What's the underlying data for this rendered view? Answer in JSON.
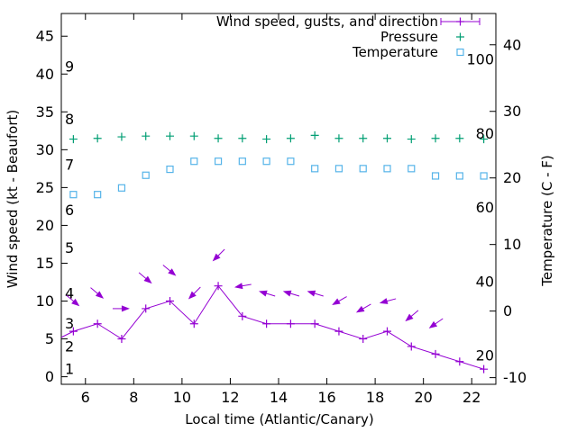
{
  "axes": {
    "left": {
      "label": "Wind speed (kt - Beaufort)",
      "ticks": [
        0,
        5,
        10,
        15,
        20,
        25,
        30,
        35,
        40,
        45
      ],
      "inner_scale": {
        "name": "Beaufort",
        "labels": [
          {
            "b": "1",
            "kt": 1
          },
          {
            "b": "2",
            "kt": 4
          },
          {
            "b": "3",
            "kt": 7
          },
          {
            "b": "4",
            "kt": 11
          },
          {
            "b": "5",
            "kt": 17
          },
          {
            "b": "6",
            "kt": 22
          },
          {
            "b": "7",
            "kt": 28
          },
          {
            "b": "8",
            "kt": 34
          },
          {
            "b": "9",
            "kt": 41
          }
        ]
      }
    },
    "right": {
      "label": "Temperature (C - F)",
      "ticks": [
        -10,
        0,
        10,
        20,
        30,
        40
      ],
      "inner_scale": {
        "name": "Fahrenheit",
        "labels": [
          20,
          40,
          60,
          80,
          100
        ]
      }
    },
    "bottom": {
      "label": "Local time (Atlantic/Canary)",
      "ticks": [
        6,
        8,
        10,
        12,
        14,
        16,
        18,
        20,
        22
      ]
    }
  },
  "chart_data": {
    "type": "line",
    "title": "",
    "xlabel": "Local time (Atlantic/Canary)",
    "ylabel": "Wind speed (kt - Beaufort)",
    "y2label": "Temperature (C - F)",
    "xlim": [
      5,
      23
    ],
    "ylim_left_kt": [
      -1,
      48
    ],
    "ylim_right_c": [
      -11,
      44.7
    ],
    "grid": false,
    "legend_position": "top-right-inside",
    "x": [
      5.5,
      6.5,
      7.5,
      8.5,
      9.5,
      10.5,
      11.5,
      12.5,
      13.5,
      14.5,
      15.5,
      16.5,
      17.5,
      18.5,
      19.5,
      20.5,
      21.5,
      22.5
    ],
    "series": [
      {
        "name": "Wind speed, gusts, and direction",
        "type": "line+markers+arrows",
        "marker": "plus",
        "color": "#9400D3",
        "axis": "left",
        "values_kt": [
          6,
          7,
          5,
          9,
          10,
          7,
          12,
          8,
          7,
          7,
          7,
          6,
          5,
          6,
          4,
          3,
          2,
          1
        ],
        "edge_start": {
          "x": 5.0,
          "y_kt": 5.2
        },
        "gusts_kt": [
          10,
          11,
          9,
          13,
          14,
          11,
          16,
          12,
          11,
          11,
          11,
          10,
          9,
          10,
          8,
          7,
          null,
          null
        ],
        "gust_arrow_angles_deg_cw_from_east": [
          40,
          40,
          0,
          40,
          40,
          135,
          135,
          170,
          197,
          197,
          197,
          150,
          150,
          165,
          140,
          145,
          null,
          null
        ]
      },
      {
        "name": "Pressure",
        "type": "points",
        "marker": "plus",
        "color": "#009E73",
        "axis": "left",
        "values_left_axis_units": [
          31.4,
          31.5,
          31.7,
          31.8,
          31.8,
          31.8,
          31.5,
          31.5,
          31.4,
          31.5,
          31.9,
          31.5,
          31.5,
          31.5,
          31.4,
          31.5,
          31.5,
          31.4
        ]
      },
      {
        "name": "Temperature",
        "type": "points",
        "marker": "open-square",
        "color": "#56B4E9",
        "axis": "right",
        "values_c": [
          17.5,
          17.5,
          18.5,
          20.4,
          21.3,
          22.5,
          22.5,
          22.5,
          22.5,
          22.5,
          21.4,
          21.4,
          21.4,
          21.4,
          21.4,
          20.3,
          20.3,
          20.3
        ]
      }
    ]
  },
  "colors": {
    "wind": "#9400D3",
    "pressure": "#009E73",
    "temperature": "#56B4E9",
    "axis": "#000000",
    "text": "#000000"
  }
}
